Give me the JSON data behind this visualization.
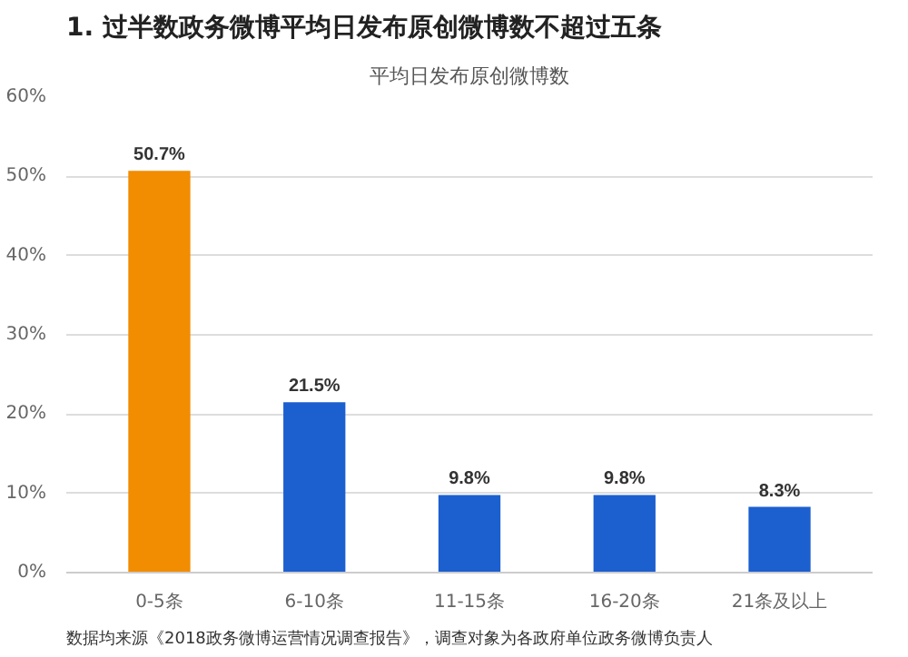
{
  "chart_data": {
    "type": "bar",
    "title": "1. 过半数政务微博平均日发布原创微博数不超过五条",
    "subtitle": "平均日发布原创微博数",
    "categories": [
      "0-5条",
      "6-10条",
      "11-15条",
      "16-20条",
      "21条及以上"
    ],
    "values": [
      50.7,
      21.5,
      9.8,
      9.8,
      8.3
    ],
    "colors": [
      "#f28c00",
      "#1c5fcf",
      "#1c5fcf",
      "#1c5fcf",
      "#1c5fcf"
    ],
    "value_labels": [
      "50.7%",
      "21.5%",
      "9.8%",
      "9.8%",
      "8.3%"
    ],
    "ylim": [
      0,
      60
    ],
    "yticks": [
      {
        "value": 0,
        "label": "0%"
      },
      {
        "value": 10,
        "label": "10%"
      },
      {
        "value": 20,
        "label": "20%"
      },
      {
        "value": 30,
        "label": "30%"
      },
      {
        "value": 40,
        "label": "40%"
      },
      {
        "value": 50,
        "label": "50%"
      },
      {
        "value": 60,
        "label": "60%"
      }
    ],
    "grid": "y",
    "annotations": [
      "数据均来源《2018政务微博运营情况调查报告》，调查对象为各政府单位政务微博负责人"
    ]
  }
}
